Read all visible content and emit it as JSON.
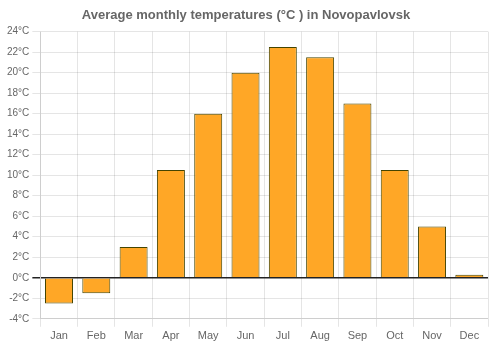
{
  "chart_data": {
    "type": "bar",
    "title": "Average monthly temperatures (°C ) in Novopavlovsk",
    "categories": [
      "Jan",
      "Feb",
      "Mar",
      "Apr",
      "May",
      "Jun",
      "Jul",
      "Aug",
      "Sep",
      "Oct",
      "Nov",
      "Dec"
    ],
    "values": [
      -2.5,
      -1.5,
      3.0,
      10.5,
      16.0,
      20.0,
      22.5,
      21.5,
      17.0,
      10.5,
      5.0,
      0.3
    ],
    "color": "#FFA726",
    "ylim": [
      -4,
      24
    ],
    "yticks": [
      {
        "value": -4,
        "label": "-4°C"
      },
      {
        "value": -2,
        "label": "-2°C"
      },
      {
        "value": 0,
        "label": "0°C"
      },
      {
        "value": 2,
        "label": "2°C"
      },
      {
        "value": 4,
        "label": "4°C"
      },
      {
        "value": 6,
        "label": "6°C"
      },
      {
        "value": 8,
        "label": "8°C"
      },
      {
        "value": 10,
        "label": "10°C"
      },
      {
        "value": 12,
        "label": "12°C"
      },
      {
        "value": 14,
        "label": "14°C"
      },
      {
        "value": 16,
        "label": "16°C"
      },
      {
        "value": 18,
        "label": "18°C"
      },
      {
        "value": 20,
        "label": "20°C"
      },
      {
        "value": 22,
        "label": "22°C"
      },
      {
        "value": 24,
        "label": "24°C"
      }
    ],
    "grid": true
  }
}
